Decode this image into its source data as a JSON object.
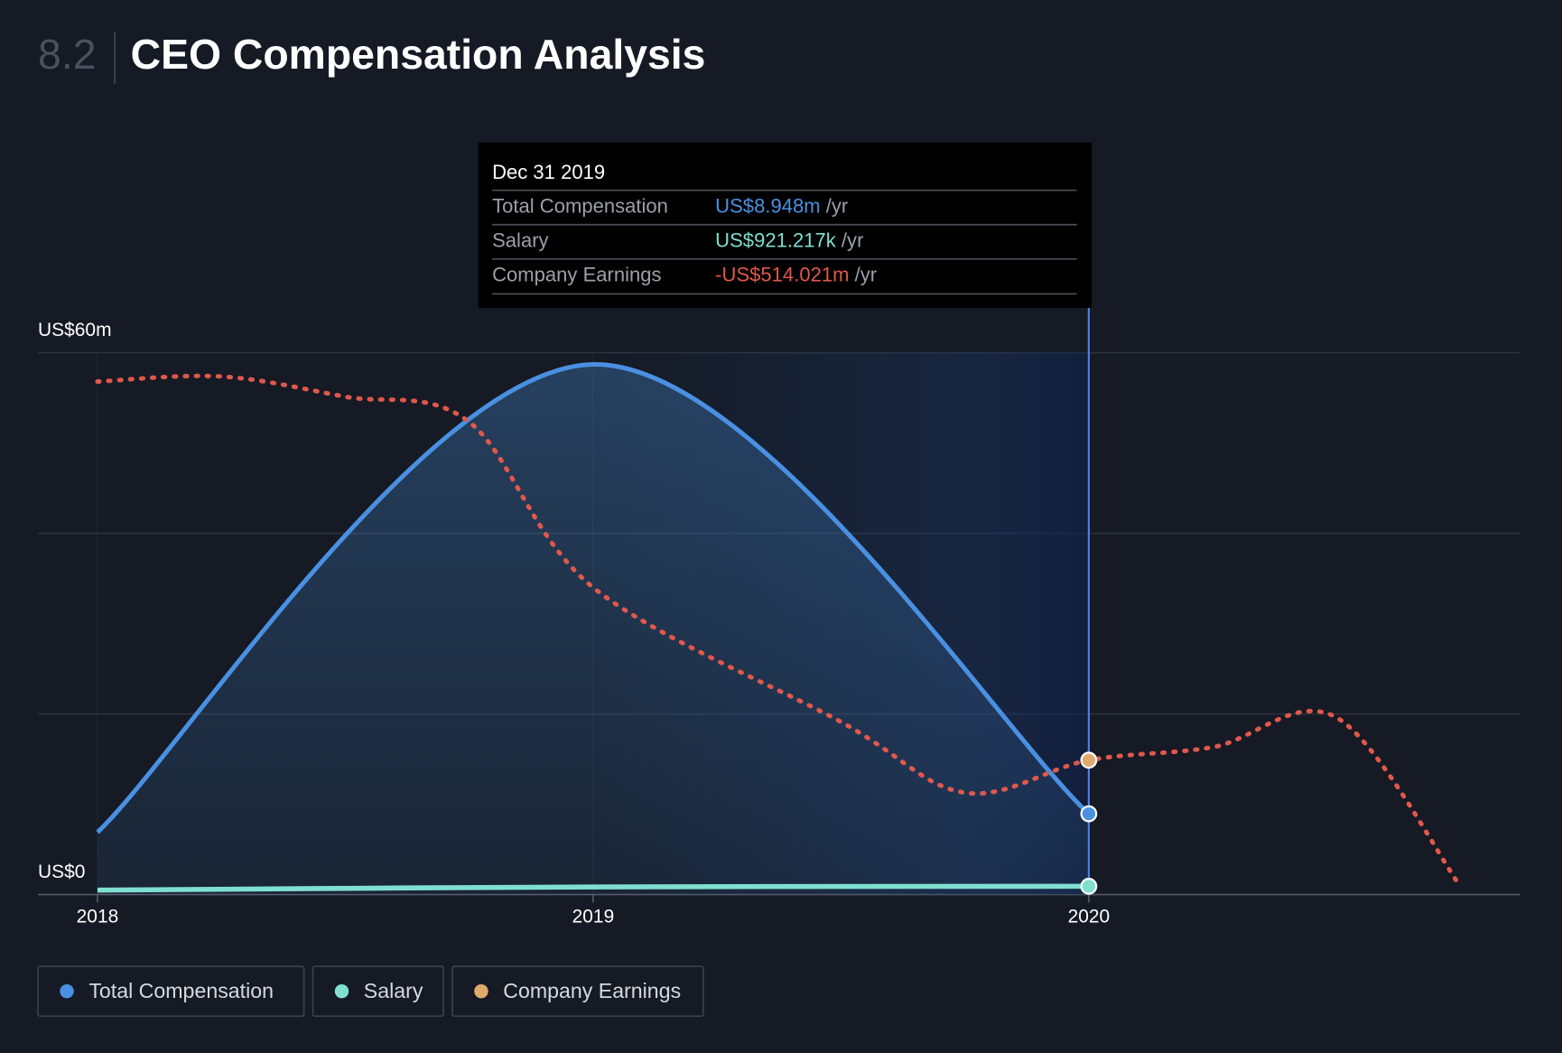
{
  "section": "8.2",
  "chart_data": {
    "type": "line",
    "title": "CEO Compensation Analysis",
    "xlim": [
      2017.88,
      2020.87
    ],
    "xticks": [
      2018,
      2019,
      2020
    ],
    "ylim": [
      0,
      60
    ],
    "yticks": [
      {
        "value": 0,
        "label": "US$0"
      },
      {
        "value": 20,
        "label": null
      },
      {
        "value": 40,
        "label": null
      },
      {
        "value": 60,
        "label": "US$60m"
      }
    ],
    "y2lim": [
      -700,
      50
    ],
    "grid": true,
    "series": [
      {
        "name": "Total Compensation",
        "color": "#4a90e2",
        "x": [
          2018,
          2019,
          2020
        ],
        "values": [
          6.9,
          58.7,
          8.948
        ]
      },
      {
        "name": "Salary",
        "color": "#7fdfd0",
        "x": [
          2018,
          2019,
          2020
        ],
        "values": [
          0.5,
          0.85,
          0.921217
        ]
      },
      {
        "name": "Company Earnings",
        "color": "#e0a96d",
        "line_color": "#e0584c",
        "axis": "y2",
        "x": [
          2018,
          2018.25,
          2018.5,
          2018.75,
          2019,
          2019.5,
          2019.75,
          2020,
          2020.25,
          2020.5,
          2020.75
        ],
        "values": [
          10,
          17,
          -11,
          -46,
          -275,
          -461,
          -559,
          -514.021,
          -496,
          -455,
          -689
        ]
      }
    ],
    "tooltip": {
      "title": "Dec 31 2019",
      "rows": [
        {
          "label": "Total Compensation",
          "value": "US$8.948m",
          "unit": "/yr"
        },
        {
          "label": "Salary",
          "value": "US$921.217k",
          "unit": "/yr"
        },
        {
          "label": "Company Earnings",
          "value": "-US$514.021m",
          "unit": "/yr"
        }
      ]
    }
  }
}
